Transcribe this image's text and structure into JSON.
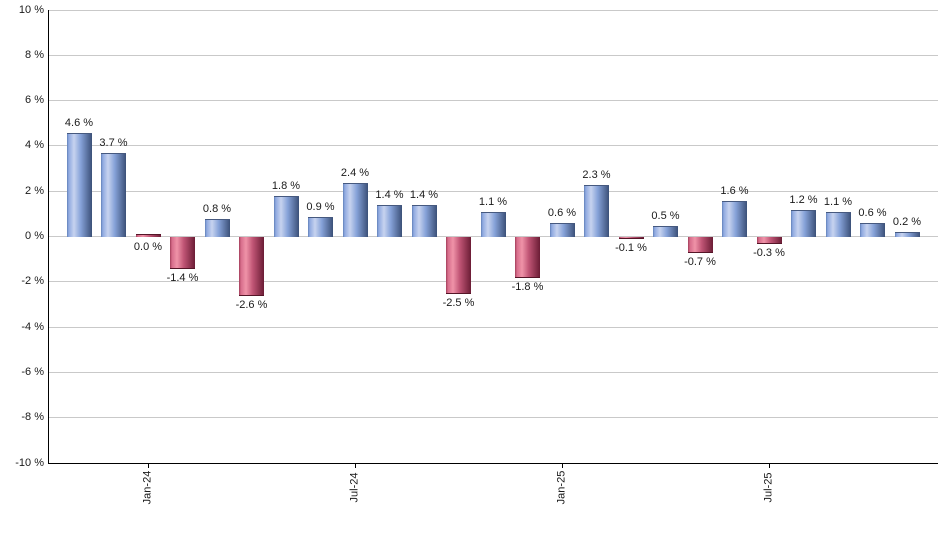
{
  "chart_data": {
    "type": "bar",
    "title": "",
    "xlabel": "",
    "ylabel": "",
    "ylim": [
      -10,
      10
    ],
    "grid": true,
    "legend": false,
    "y_ticks": [
      {
        "value": 10,
        "label": "10 %"
      },
      {
        "value": 8,
        "label": "8 %"
      },
      {
        "value": 6,
        "label": "6 %"
      },
      {
        "value": 4,
        "label": "4 %"
      },
      {
        "value": 2,
        "label": "2 %"
      },
      {
        "value": 0,
        "label": "0 %"
      },
      {
        "value": -2,
        "label": "-2 %"
      },
      {
        "value": -4,
        "label": "-4 %"
      },
      {
        "value": -6,
        "label": "-6 %"
      },
      {
        "value": -8,
        "label": "-8 %"
      },
      {
        "value": -10,
        "label": "-10 %"
      }
    ],
    "x_ticks": [
      {
        "label": "Jan-24",
        "bar_index": 2
      },
      {
        "label": "Jul-24",
        "bar_index": 8
      },
      {
        "label": "Jan-25",
        "bar_index": 14
      },
      {
        "label": "Jul-25",
        "bar_index": 20
      }
    ],
    "bars": [
      {
        "value": 4.6,
        "label": "4.6 %",
        "color": "positive"
      },
      {
        "value": 3.7,
        "label": "3.7 %",
        "color": "positive"
      },
      {
        "value": 0.0,
        "label": "0.0 %",
        "color": "negative"
      },
      {
        "value": -1.4,
        "label": "-1.4 %",
        "color": "negative"
      },
      {
        "value": 0.8,
        "label": "0.8 %",
        "color": "positive"
      },
      {
        "value": -2.6,
        "label": "-2.6 %",
        "color": "negative"
      },
      {
        "value": 1.8,
        "label": "1.8 %",
        "color": "positive"
      },
      {
        "value": 0.9,
        "label": "0.9 %",
        "color": "positive"
      },
      {
        "value": 2.4,
        "label": "2.4 %",
        "color": "positive"
      },
      {
        "value": 1.4,
        "label": "1.4 %",
        "color": "positive"
      },
      {
        "value": 1.4,
        "label": "1.4 %",
        "color": "positive"
      },
      {
        "value": -2.5,
        "label": "-2.5 %",
        "color": "negative"
      },
      {
        "value": 1.1,
        "label": "1.1 %",
        "color": "positive"
      },
      {
        "value": -1.8,
        "label": "-1.8 %",
        "color": "negative"
      },
      {
        "value": 0.6,
        "label": "0.6 %",
        "color": "positive"
      },
      {
        "value": 2.3,
        "label": "2.3 %",
        "color": "positive"
      },
      {
        "value": -0.1,
        "label": "-0.1 %",
        "color": "negative"
      },
      {
        "value": 0.5,
        "label": "0.5 %",
        "color": "positive"
      },
      {
        "value": -0.7,
        "label": "-0.7 %",
        "color": "negative"
      },
      {
        "value": 1.6,
        "label": "1.6 %",
        "color": "positive"
      },
      {
        "value": -0.3,
        "label": "-0.3 %",
        "color": "negative"
      },
      {
        "value": 1.2,
        "label": "1.2 %",
        "color": "positive"
      },
      {
        "value": 1.1,
        "label": "1.1 %",
        "color": "positive"
      },
      {
        "value": 0.6,
        "label": "0.6 %",
        "color": "positive"
      },
      {
        "value": 0.2,
        "label": "0.2 %",
        "color": "positive"
      }
    ],
    "colors": {
      "positive_gradient": [
        "#6180B8 0%",
        "#8FA9E0 7%",
        "#C7D3EF 28%",
        "#86A2D8 55%",
        "#3B5078 100%"
      ],
      "negative_gradient": [
        "#A23D59 0%",
        "#D76D8B 8%",
        "#EF93A8 28%",
        "#C05575 55%",
        "#6B1C35 100%"
      ],
      "positive_cap": "#46597F",
      "negative_cap": "#541527",
      "grid": "#C9C9C9",
      "axis": "#000000",
      "text": "#1A1A1A",
      "background": "#FFFFFF"
    }
  }
}
